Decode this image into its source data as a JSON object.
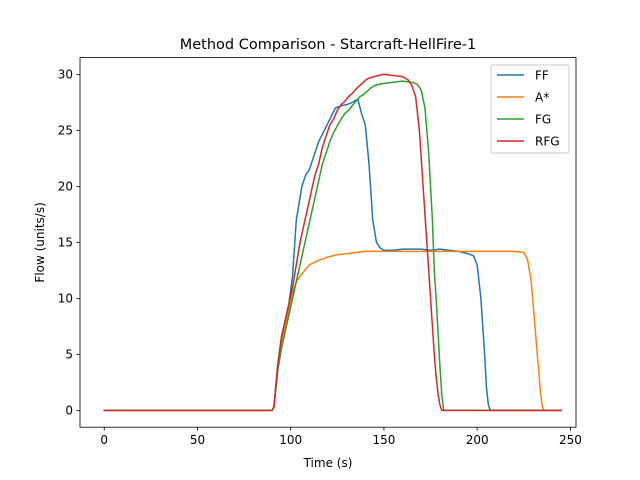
{
  "chart_data": {
    "type": "line",
    "title": "Method Comparison - Starcraft-HellFire-1",
    "xlabel": "Time (s)",
    "ylabel": "Flow (units/s)",
    "xlim": [
      -13,
      253
    ],
    "ylim": [
      -1.5,
      31.5
    ],
    "xticks": [
      0,
      50,
      100,
      150,
      200,
      250
    ],
    "yticks": [
      0,
      5,
      10,
      15,
      20,
      25,
      30
    ],
    "grid": false,
    "legend_position": "top-right",
    "series": [
      {
        "name": "FF",
        "color": "#1f77b4",
        "x": [
          0,
          90,
          91,
          93,
          95,
          97,
          99,
          101,
          103,
          104,
          106,
          108,
          110,
          112,
          115,
          118,
          121,
          124,
          127,
          130,
          133,
          136,
          138,
          140,
          142,
          144,
          146,
          148,
          150,
          155,
          160,
          165,
          170,
          175,
          180,
          185,
          190,
          195,
          198,
          200,
          202,
          204,
          205,
          206,
          207,
          245
        ],
        "y": [
          0,
          0,
          0.3,
          4,
          6.5,
          8,
          9.5,
          12,
          17,
          18,
          20,
          21,
          21.5,
          22.5,
          24,
          25,
          26,
          27,
          27.2,
          27.3,
          27.5,
          27.8,
          26.5,
          25.5,
          22,
          17,
          15,
          14.5,
          14.3,
          14.3,
          14.4,
          14.4,
          14.4,
          14.3,
          14.4,
          14.3,
          14.2,
          14.0,
          13.8,
          13,
          10,
          5,
          2,
          0.5,
          0,
          0
        ]
      },
      {
        "name": "A*",
        "color": "#ff7f0e",
        "x": [
          0,
          90,
          91,
          93,
          95,
          97,
          99,
          101,
          103,
          106,
          110,
          115,
          120,
          125,
          130,
          135,
          140,
          145,
          150,
          160,
          170,
          180,
          190,
          200,
          210,
          220,
          225,
          227,
          229,
          231,
          233,
          234,
          235,
          236,
          245
        ],
        "y": [
          0,
          0,
          0.3,
          3.5,
          6,
          7.5,
          9,
          10.5,
          11.5,
          12.2,
          13,
          13.4,
          13.7,
          13.9,
          14.0,
          14.1,
          14.2,
          14.2,
          14.2,
          14.2,
          14.2,
          14.2,
          14.2,
          14.2,
          14.2,
          14.2,
          14.1,
          13.5,
          11.5,
          7.5,
          3.5,
          1.5,
          0.3,
          0,
          0
        ]
      },
      {
        "name": "FG",
        "color": "#2ca02c",
        "x": [
          0,
          90,
          91,
          93,
          95,
          97,
          99,
          101,
          103,
          105,
          107,
          109,
          111,
          113,
          115,
          117,
          119,
          121,
          123,
          125,
          127,
          129,
          131,
          133,
          135,
          137,
          139,
          141,
          143,
          145,
          147,
          150,
          155,
          160,
          165,
          168,
          170,
          172,
          174,
          176,
          177,
          178,
          179,
          180,
          181,
          182,
          245
        ],
        "y": [
          0,
          0,
          0.3,
          3.5,
          5.5,
          7,
          8.5,
          10,
          11.5,
          13,
          14.5,
          16,
          17.5,
          19,
          20.5,
          22,
          23,
          24,
          24.8,
          25.4,
          26,
          26.5,
          26.8,
          27.2,
          27.6,
          28,
          28.2,
          28.5,
          28.8,
          29,
          29.1,
          29.2,
          29.3,
          29.4,
          29.3,
          29.1,
          28.6,
          27,
          23,
          17,
          12.5,
          10,
          7,
          4,
          1.5,
          0,
          0
        ]
      },
      {
        "name": "RFG",
        "color": "#d62728",
        "x": [
          0,
          90,
          91,
          93,
          95,
          97,
          99,
          101,
          103,
          105,
          107,
          109,
          111,
          113,
          115,
          117,
          119,
          121,
          123,
          125,
          127,
          129,
          131,
          133,
          135,
          137,
          139,
          141,
          143,
          145,
          147,
          150,
          155,
          160,
          163,
          165,
          167,
          169,
          171,
          173,
          175,
          177,
          178,
          179,
          180,
          181,
          245
        ],
        "y": [
          0,
          0,
          0.3,
          4,
          6.5,
          8,
          9.5,
          11,
          13,
          15,
          16.5,
          18,
          19.5,
          21,
          22,
          23.5,
          24.5,
          25.5,
          26,
          26.8,
          27.3,
          27.6,
          28,
          28.3,
          28.7,
          29,
          29.3,
          29.6,
          29.7,
          29.8,
          29.9,
          30,
          29.9,
          29.8,
          29.5,
          29,
          28,
          25,
          20,
          15,
          10,
          5,
          3,
          1.5,
          0.5,
          0,
          0
        ]
      }
    ]
  }
}
